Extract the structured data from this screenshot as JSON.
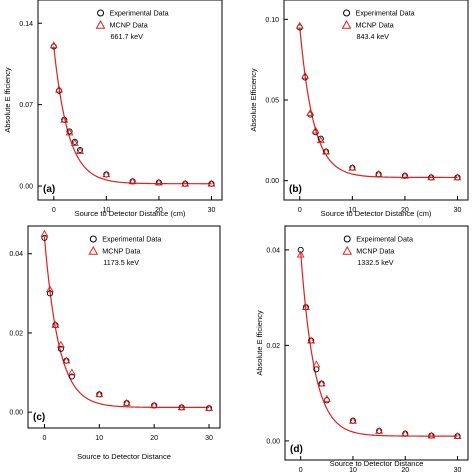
{
  "colors": {
    "fit_line": "#e02020",
    "mcnp_marker": "#e02020",
    "exp_marker": "#000000",
    "axis": "#000000"
  },
  "chart_data": [
    {
      "type": "scatter",
      "panel_label": "(a)",
      "energy_label": "661.7 keV",
      "xlabel": "Source to Detector Distance (cm)",
      "ylabel": "Absolute E fficiency",
      "xlim": [
        -3,
        32
      ],
      "ylim": [
        -0.012,
        0.16
      ],
      "xticks": [
        0,
        10,
        20,
        30
      ],
      "xtick_labels": [
        "0",
        "10",
        "20",
        "30"
      ],
      "yticks": [
        0.0,
        0.07,
        0.14
      ],
      "ytick_labels": [
        "0.00",
        "0.07",
        "0.14"
      ],
      "legend": "top-right",
      "series": [
        {
          "name": "Experimental Data",
          "marker": "circle",
          "x": [
            0,
            1,
            2,
            3,
            4,
            5,
            10,
            15,
            20,
            25,
            30
          ],
          "y": [
            0.12,
            0.082,
            0.057,
            0.047,
            0.038,
            0.031,
            0.01,
            0.004,
            0.003,
            0.002,
            0.002
          ]
        },
        {
          "name": "MCNP Data",
          "marker": "triangle",
          "x": [
            0,
            1,
            2,
            3,
            4,
            5,
            10,
            15,
            20,
            25,
            30
          ],
          "y": [
            0.121,
            0.083,
            0.057,
            0.046,
            0.037,
            0.03,
            0.01,
            0.004,
            0.003,
            0.002,
            0.002
          ]
        }
      ],
      "fit": {
        "a": 0.118,
        "k": 0.36,
        "c": 0.002
      }
    },
    {
      "type": "scatter",
      "panel_label": "(b)",
      "energy_label": "843.4 keV",
      "xlabel": "Source to Detector Distance (cm)",
      "ylabel": "Absolute Efficiency",
      "xlim": [
        -3,
        32
      ],
      "ylim": [
        -0.012,
        0.112
      ],
      "xticks": [
        0,
        10,
        20,
        30
      ],
      "xtick_labels": [
        "0",
        "10",
        "20",
        "30"
      ],
      "yticks": [
        0.0,
        0.05,
        0.1
      ],
      "ytick_labels": [
        "0.00",
        "0.05",
        "0.10"
      ],
      "legend": "top-right",
      "series": [
        {
          "name": "Experimental Data",
          "marker": "circle",
          "x": [
            0,
            1,
            2,
            3,
            4,
            5,
            10,
            15,
            20,
            25,
            30
          ],
          "y": [
            0.095,
            0.064,
            0.041,
            0.03,
            0.026,
            0.018,
            0.008,
            0.004,
            0.003,
            0.002,
            0.002
          ]
        },
        {
          "name": "MCNP Data",
          "marker": "triangle",
          "x": [
            0,
            1,
            2,
            3,
            4,
            5,
            10,
            15,
            20,
            25,
            30
          ],
          "y": [
            0.096,
            0.065,
            0.042,
            0.031,
            0.025,
            0.018,
            0.008,
            0.004,
            0.003,
            0.002,
            0.002
          ]
        }
      ],
      "fit": {
        "a": 0.093,
        "k": 0.38,
        "c": 0.002
      }
    },
    {
      "type": "scatter",
      "panel_label": "(c)",
      "energy_label": "1173.5 keV",
      "xlabel": "Source to Detector Distance",
      "ylabel": "",
      "xlim": [
        -3,
        32
      ],
      "ylim": [
        -0.004,
        0.047
      ],
      "xticks": [
        0,
        10,
        20,
        30
      ],
      "xtick_labels": [
        "0",
        "10",
        "20",
        "30"
      ],
      "yticks": [
        0.0,
        0.02,
        0.04
      ],
      "ytick_labels": [
        "0.00",
        "0.02",
        "0.04"
      ],
      "legend": "top-right",
      "series": [
        {
          "name": "Experimental Data",
          "marker": "circle",
          "x": [
            0,
            1,
            2,
            3,
            4,
            5,
            10,
            15,
            20,
            25,
            30
          ],
          "y": [
            0.044,
            0.03,
            0.022,
            0.016,
            0.013,
            0.009,
            0.0045,
            0.0023,
            0.0017,
            0.0012,
            0.001
          ]
        },
        {
          "name": "MCNP Data",
          "marker": "triangle",
          "x": [
            0,
            1,
            2,
            3,
            4,
            5,
            10,
            15,
            20,
            25,
            30
          ],
          "y": [
            0.045,
            0.031,
            0.022,
            0.017,
            0.013,
            0.01,
            0.0045,
            0.0023,
            0.0017,
            0.0012,
            0.001
          ]
        }
      ],
      "fit": {
        "a": 0.043,
        "k": 0.38,
        "c": 0.0012
      }
    },
    {
      "type": "scatter",
      "panel_label": "(d)",
      "energy_label": "1332.5 keV",
      "xlabel": "Source to Detector Distance",
      "ylabel": "Absolute E fficiency",
      "xlim": [
        -3,
        32
      ],
      "ylim": [
        -0.004,
        0.045
      ],
      "xticks": [
        0,
        10,
        20,
        30
      ],
      "xtick_labels": [
        "0",
        "10",
        "20",
        "30"
      ],
      "yticks": [
        0.0,
        0.02,
        0.04
      ],
      "ytick_labels": [
        "0.00",
        "0.02",
        "0.04"
      ],
      "legend": "top-right",
      "series": [
        {
          "name": "Expeimental Data",
          "marker": "circle",
          "x": [
            0,
            1,
            2,
            3,
            4,
            5,
            10,
            15,
            20,
            25,
            30
          ],
          "y": [
            0.04,
            0.028,
            0.021,
            0.015,
            0.012,
            0.0085,
            0.0042,
            0.0021,
            0.0015,
            0.0011,
            0.001
          ]
        },
        {
          "name": "MCNP Data",
          "marker": "triangle",
          "x": [
            0,
            1,
            2,
            3,
            4,
            5,
            10,
            15,
            20,
            25,
            30
          ],
          "y": [
            0.039,
            0.028,
            0.021,
            0.016,
            0.012,
            0.0088,
            0.0042,
            0.0021,
            0.0015,
            0.0011,
            0.001
          ]
        }
      ],
      "fit": {
        "a": 0.0385,
        "k": 0.38,
        "c": 0.001
      }
    }
  ]
}
